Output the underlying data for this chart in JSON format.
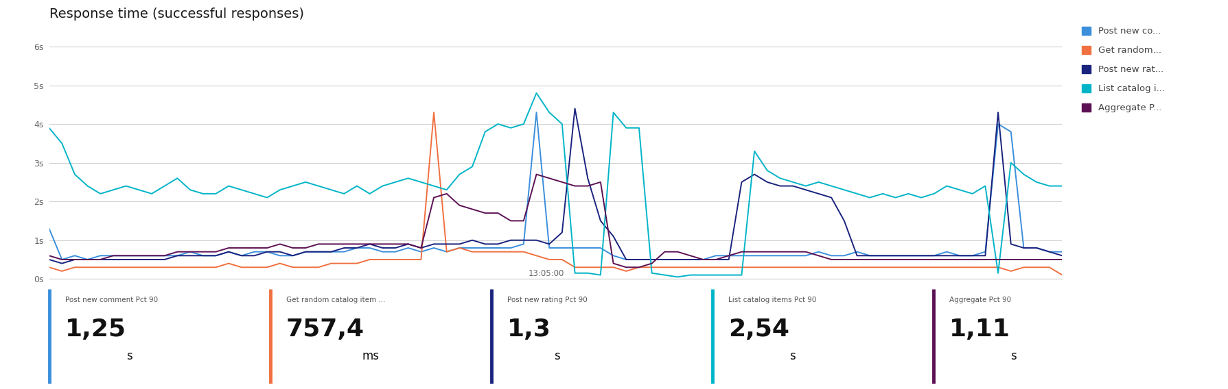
{
  "title": "Response time (successful responses)",
  "title_fontsize": 14,
  "ylabel_ticks": [
    "0s",
    "1s",
    "2s",
    "3s",
    "4s",
    "5s",
    "6s"
  ],
  "ytick_values": [
    0,
    1,
    2,
    3,
    4,
    5,
    6
  ],
  "xlabel_center": "13:05:00",
  "ylim": [
    0,
    6.5
  ],
  "background_color": "#ffffff",
  "grid_color": "#d0d0d0",
  "legend_entries": [
    "Post new co...",
    "Get random...",
    "Post new rat...",
    "List catalog i...",
    "Aggregate P..."
  ],
  "series_colors": [
    "#3b8fdb",
    "#f07040",
    "#1a237e",
    "#00b4c8",
    "#5c1154"
  ],
  "n_points": 80,
  "summary_labels": [
    "Post new comment Pct 90",
    "Get random catalog item ...",
    "Post new rating Pct 90",
    "List catalog items Pct 90",
    "Aggregate Pct 90"
  ],
  "summary_values": [
    "1,25",
    "757,4",
    "1,3",
    "2,54",
    "1,11"
  ],
  "summary_units": [
    "s",
    "ms",
    "s",
    "s",
    "s"
  ],
  "summary_colors": [
    "#3b8fdb",
    "#f07040",
    "#1a237e",
    "#00b4c8",
    "#5c1154"
  ],
  "post_new_comment": [
    1.3,
    0.5,
    0.6,
    0.5,
    0.6,
    0.6,
    0.6,
    0.6,
    0.6,
    0.6,
    0.6,
    0.7,
    0.6,
    0.6,
    0.7,
    0.6,
    0.7,
    0.7,
    0.6,
    0.6,
    0.7,
    0.7,
    0.7,
    0.7,
    0.8,
    0.8,
    0.7,
    0.7,
    0.8,
    0.7,
    0.8,
    0.7,
    0.8,
    0.8,
    0.8,
    0.8,
    0.8,
    0.9,
    4.3,
    0.8,
    0.8,
    0.8,
    0.8,
    0.8,
    0.6,
    0.5,
    0.5,
    0.5,
    0.5,
    0.5,
    0.5,
    0.5,
    0.6,
    0.6,
    0.6,
    0.6,
    0.6,
    0.6,
    0.6,
    0.6,
    0.7,
    0.6,
    0.6,
    0.7,
    0.6,
    0.6,
    0.6,
    0.6,
    0.6,
    0.6,
    0.7,
    0.6,
    0.6,
    0.7,
    4.0,
    3.8,
    0.8,
    0.8,
    0.7,
    0.7
  ],
  "get_random": [
    0.3,
    0.2,
    0.3,
    0.3,
    0.3,
    0.3,
    0.3,
    0.3,
    0.3,
    0.3,
    0.3,
    0.3,
    0.3,
    0.3,
    0.4,
    0.3,
    0.3,
    0.3,
    0.4,
    0.3,
    0.3,
    0.3,
    0.4,
    0.4,
    0.4,
    0.5,
    0.5,
    0.5,
    0.5,
    0.5,
    4.3,
    0.7,
    0.8,
    0.7,
    0.7,
    0.7,
    0.7,
    0.7,
    0.6,
    0.5,
    0.5,
    0.3,
    0.3,
    0.3,
    0.3,
    0.2,
    0.3,
    0.3,
    0.3,
    0.3,
    0.3,
    0.3,
    0.3,
    0.3,
    0.3,
    0.3,
    0.3,
    0.3,
    0.3,
    0.3,
    0.3,
    0.3,
    0.3,
    0.3,
    0.3,
    0.3,
    0.3,
    0.3,
    0.3,
    0.3,
    0.3,
    0.3,
    0.3,
    0.3,
    0.3,
    0.2,
    0.3,
    0.3,
    0.3,
    0.1
  ],
  "post_new_rating": [
    0.5,
    0.4,
    0.5,
    0.5,
    0.5,
    0.5,
    0.5,
    0.5,
    0.5,
    0.5,
    0.6,
    0.6,
    0.6,
    0.6,
    0.7,
    0.6,
    0.6,
    0.7,
    0.7,
    0.6,
    0.7,
    0.7,
    0.7,
    0.8,
    0.8,
    0.9,
    0.8,
    0.8,
    0.9,
    0.8,
    0.9,
    0.9,
    0.9,
    1.0,
    0.9,
    0.9,
    1.0,
    1.0,
    1.0,
    0.9,
    1.2,
    4.4,
    2.6,
    1.5,
    1.1,
    0.5,
    0.5,
    0.5,
    0.5,
    0.5,
    0.5,
    0.5,
    0.5,
    0.5,
    2.5,
    2.7,
    2.5,
    2.4,
    2.4,
    2.3,
    2.2,
    2.1,
    1.5,
    0.6,
    0.6,
    0.6,
    0.6,
    0.6,
    0.6,
    0.6,
    0.6,
    0.6,
    0.6,
    0.6,
    4.3,
    0.9,
    0.8,
    0.8,
    0.7,
    0.6
  ],
  "list_catalog": [
    3.9,
    3.5,
    2.7,
    2.4,
    2.2,
    2.3,
    2.4,
    2.3,
    2.2,
    2.4,
    2.6,
    2.3,
    2.2,
    2.2,
    2.4,
    2.3,
    2.2,
    2.1,
    2.3,
    2.4,
    2.5,
    2.4,
    2.3,
    2.2,
    2.4,
    2.2,
    2.4,
    2.5,
    2.6,
    2.5,
    2.4,
    2.3,
    2.7,
    2.9,
    3.8,
    4.0,
    3.9,
    4.0,
    4.8,
    4.3,
    4.0,
    0.15,
    0.15,
    0.1,
    4.3,
    3.9,
    3.9,
    0.15,
    0.1,
    0.05,
    0.1,
    0.1,
    0.1,
    0.1,
    0.1,
    3.3,
    2.8,
    2.6,
    2.5,
    2.4,
    2.5,
    2.4,
    2.3,
    2.2,
    2.1,
    2.2,
    2.1,
    2.2,
    2.1,
    2.2,
    2.4,
    2.3,
    2.2,
    2.4,
    0.15,
    3.0,
    2.7,
    2.5,
    2.4,
    2.4
  ],
  "aggregate": [
    0.6,
    0.5,
    0.5,
    0.5,
    0.5,
    0.6,
    0.6,
    0.6,
    0.6,
    0.6,
    0.7,
    0.7,
    0.7,
    0.7,
    0.8,
    0.8,
    0.8,
    0.8,
    0.9,
    0.8,
    0.8,
    0.9,
    0.9,
    0.9,
    0.9,
    0.9,
    0.9,
    0.9,
    0.9,
    0.8,
    2.1,
    2.2,
    1.9,
    1.8,
    1.7,
    1.7,
    1.5,
    1.5,
    2.7,
    2.6,
    2.5,
    2.4,
    2.4,
    2.5,
    0.4,
    0.3,
    0.3,
    0.4,
    0.7,
    0.7,
    0.6,
    0.5,
    0.5,
    0.6,
    0.7,
    0.7,
    0.7,
    0.7,
    0.7,
    0.7,
    0.6,
    0.5,
    0.5,
    0.5,
    0.5,
    0.5,
    0.5,
    0.5,
    0.5,
    0.5,
    0.5,
    0.5,
    0.5,
    0.5,
    0.5,
    0.5,
    0.5,
    0.5,
    0.5,
    0.5
  ]
}
